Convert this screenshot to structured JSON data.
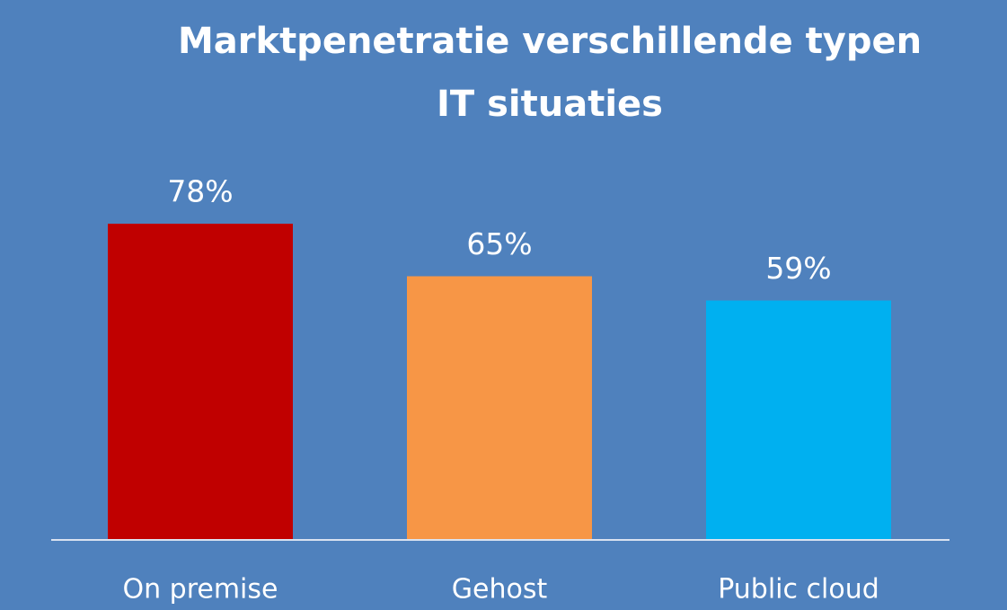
{
  "chart_data": {
    "type": "bar",
    "title": [
      "Marktpenetratie verschillende typen",
      "IT situaties"
    ],
    "categories": [
      "On premise",
      "Gehost",
      "Public cloud"
    ],
    "values": [
      78,
      65,
      59
    ],
    "value_labels": [
      "78%",
      "65%",
      "59%"
    ],
    "colors": [
      "#c00000",
      "#f79646",
      "#00b0f0"
    ],
    "background": "#4f81bd"
  }
}
